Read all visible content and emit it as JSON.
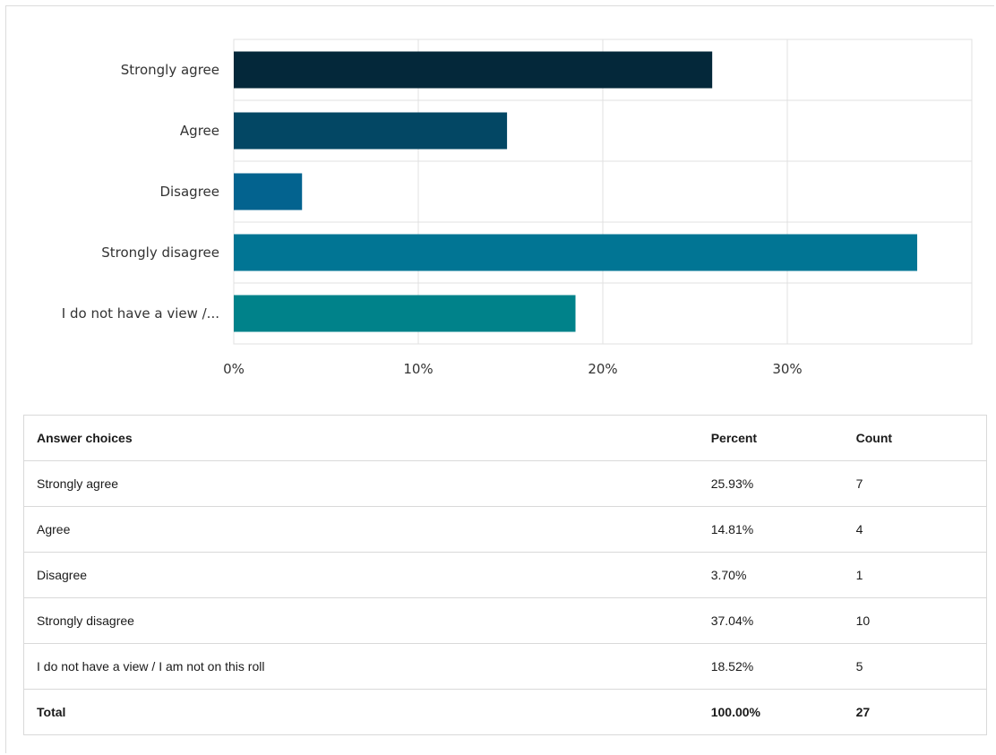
{
  "chart_data": {
    "type": "bar",
    "orientation": "horizontal",
    "categories": [
      "Strongly agree",
      "Agree",
      "Disagree",
      "Strongly disagree",
      "I do not have a view /..."
    ],
    "values": [
      25.93,
      14.81,
      3.7,
      37.04,
      18.52
    ],
    "x_ticks": [
      "0%",
      "10%",
      "20%",
      "30%"
    ],
    "xlim": [
      0,
      40
    ],
    "grid": true,
    "colors": [
      "#04283a",
      "#034764",
      "#03638f",
      "#017594",
      "#00828a"
    ]
  },
  "table": {
    "headers": {
      "choice": "Answer choices",
      "percent": "Percent",
      "count": "Count"
    },
    "rows": [
      {
        "choice": "Strongly agree",
        "percent": "25.93%",
        "count": "7"
      },
      {
        "choice": "Agree",
        "percent": "14.81%",
        "count": "4"
      },
      {
        "choice": "Disagree",
        "percent": "3.70%",
        "count": "1"
      },
      {
        "choice": "Strongly disagree",
        "percent": "37.04%",
        "count": "10"
      },
      {
        "choice": "I do not have a view / I am not on this roll",
        "percent": "18.52%",
        "count": "5"
      }
    ],
    "total": {
      "choice": "Total",
      "percent": "100.00%",
      "count": "27"
    }
  }
}
